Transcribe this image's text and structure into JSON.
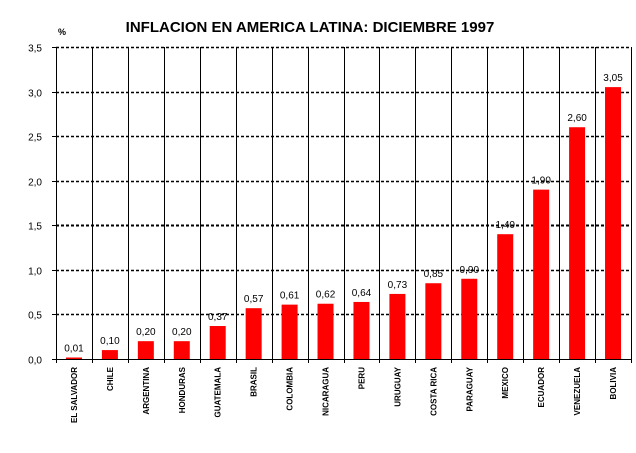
{
  "chart_data": {
    "type": "bar",
    "title": "INFLACION EN AMERICA LATINA: DICIEMBRE 1997",
    "ylabel": "%",
    "xlabel": "",
    "ylim": [
      0,
      3.5
    ],
    "yticks": [
      0.0,
      0.5,
      1.0,
      1.5,
      2.0,
      2.5,
      3.0,
      3.5
    ],
    "ytick_labels": [
      "0,0",
      "0,5",
      "1,0",
      "1,5",
      "2,0",
      "2,5",
      "3,0",
      "3,5"
    ],
    "grid": true,
    "bar_color": "#ff0000",
    "categories": [
      "EL SALVADOR",
      "CHILE",
      "ARGENTINA",
      "HONDURAS",
      "GUATEMALA",
      "BRASIL",
      "COLOMBIA",
      "NICARAGUA",
      "PERU",
      "URUGUAY",
      "COSTA RICA",
      "PARAGUAY",
      "MEXICO",
      "ECUADOR",
      "VENEZUELA",
      "BOLIVIA"
    ],
    "values": [
      0.01,
      0.1,
      0.2,
      0.2,
      0.37,
      0.57,
      0.61,
      0.62,
      0.64,
      0.73,
      0.85,
      0.9,
      1.4,
      1.9,
      2.6,
      3.05
    ],
    "value_labels": [
      "0,01",
      "0,10",
      "0,20",
      "0,20",
      "0,37",
      "0,57",
      "0,61",
      "0,62",
      "0,64",
      "0,73",
      "0,85",
      "0,90",
      "1,40",
      "1,90",
      "2,60",
      "3,05"
    ]
  }
}
